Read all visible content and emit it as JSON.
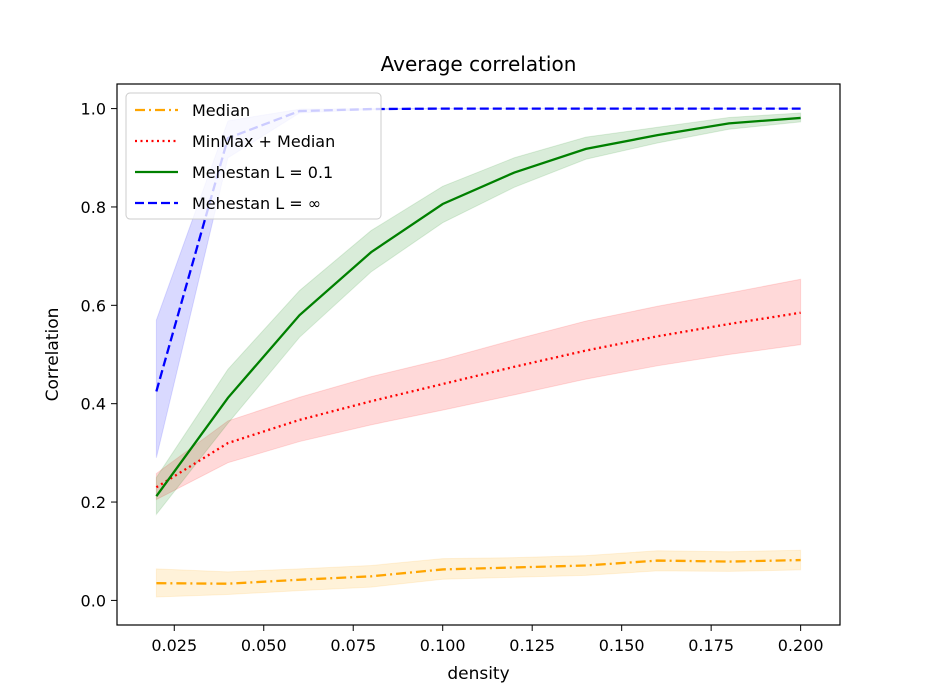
{
  "chart_data": {
    "type": "line",
    "title": "Average correlation",
    "xlabel": "density",
    "ylabel": "Correlation",
    "xlim": [
      0.009,
      0.211
    ],
    "ylim": [
      -0.05,
      1.05
    ],
    "grid": false,
    "legend_position": "upper-left",
    "x_ticks": [
      {
        "value": 0.025,
        "label": "0.025"
      },
      {
        "value": 0.05,
        "label": "0.050"
      },
      {
        "value": 0.075,
        "label": "0.075"
      },
      {
        "value": 0.1,
        "label": "0.100"
      },
      {
        "value": 0.125,
        "label": "0.125"
      },
      {
        "value": 0.15,
        "label": "0.150"
      },
      {
        "value": 0.175,
        "label": "0.175"
      },
      {
        "value": 0.2,
        "label": "0.200"
      }
    ],
    "y_ticks": [
      {
        "value": 0.0,
        "label": "0.0"
      },
      {
        "value": 0.2,
        "label": "0.2"
      },
      {
        "value": 0.4,
        "label": "0.4"
      },
      {
        "value": 0.6,
        "label": "0.6"
      },
      {
        "value": 0.8,
        "label": "0.8"
      },
      {
        "value": 1.0,
        "label": "1.0"
      }
    ],
    "x": [
      0.02,
      0.04,
      0.06,
      0.08,
      0.1,
      0.12,
      0.14,
      0.16,
      0.18,
      0.2
    ],
    "series": [
      {
        "name": "Median",
        "key": "median",
        "color": "#ffa500",
        "style": "dashdot",
        "values": [
          0.035,
          0.034,
          0.042,
          0.049,
          0.063,
          0.067,
          0.071,
          0.081,
          0.079,
          0.082
        ],
        "lower": [
          0.007,
          0.012,
          0.02,
          0.027,
          0.043,
          0.047,
          0.051,
          0.06,
          0.059,
          0.062
        ],
        "upper": [
          0.064,
          0.058,
          0.064,
          0.071,
          0.085,
          0.087,
          0.091,
          0.101,
          0.099,
          0.102
        ]
      },
      {
        "name": "MinMax + Median",
        "key": "minmax_median",
        "color": "#ff0000",
        "style": "dotted",
        "values": [
          0.23,
          0.32,
          0.367,
          0.405,
          0.44,
          0.475,
          0.508,
          0.537,
          0.562,
          0.585
        ],
        "lower": [
          0.205,
          0.28,
          0.323,
          0.357,
          0.387,
          0.418,
          0.45,
          0.477,
          0.5,
          0.52
        ],
        "upper": [
          0.258,
          0.365,
          0.413,
          0.455,
          0.49,
          0.53,
          0.568,
          0.598,
          0.625,
          0.653
        ]
      },
      {
        "name": "Mehestan  L = 0.1",
        "key": "mehestan_01",
        "color": "#008000",
        "style": "solid",
        "values": [
          0.212,
          0.412,
          0.58,
          0.708,
          0.806,
          0.87,
          0.918,
          0.946,
          0.97,
          0.981
        ],
        "lower": [
          0.175,
          0.36,
          0.535,
          0.668,
          0.768,
          0.84,
          0.897,
          0.93,
          0.958,
          0.973
        ],
        "upper": [
          0.25,
          0.47,
          0.63,
          0.752,
          0.842,
          0.9,
          0.942,
          0.962,
          0.982,
          0.991
        ]
      },
      {
        "name": "Mehestan  L = ∞",
        "key": "mehestan_inf",
        "color": "#0000ff",
        "style": "dashed",
        "values": [
          0.425,
          0.94,
          0.995,
          0.999,
          1.0,
          1.0,
          1.0,
          1.0,
          1.0,
          1.0
        ],
        "lower": [
          0.29,
          0.9,
          0.991,
          0.998,
          1.0,
          1.0,
          1.0,
          1.0,
          1.0,
          1.0
        ],
        "upper": [
          0.57,
          0.975,
          0.999,
          1.0,
          1.0,
          1.0,
          1.0,
          1.0,
          1.0,
          1.0
        ]
      }
    ]
  }
}
